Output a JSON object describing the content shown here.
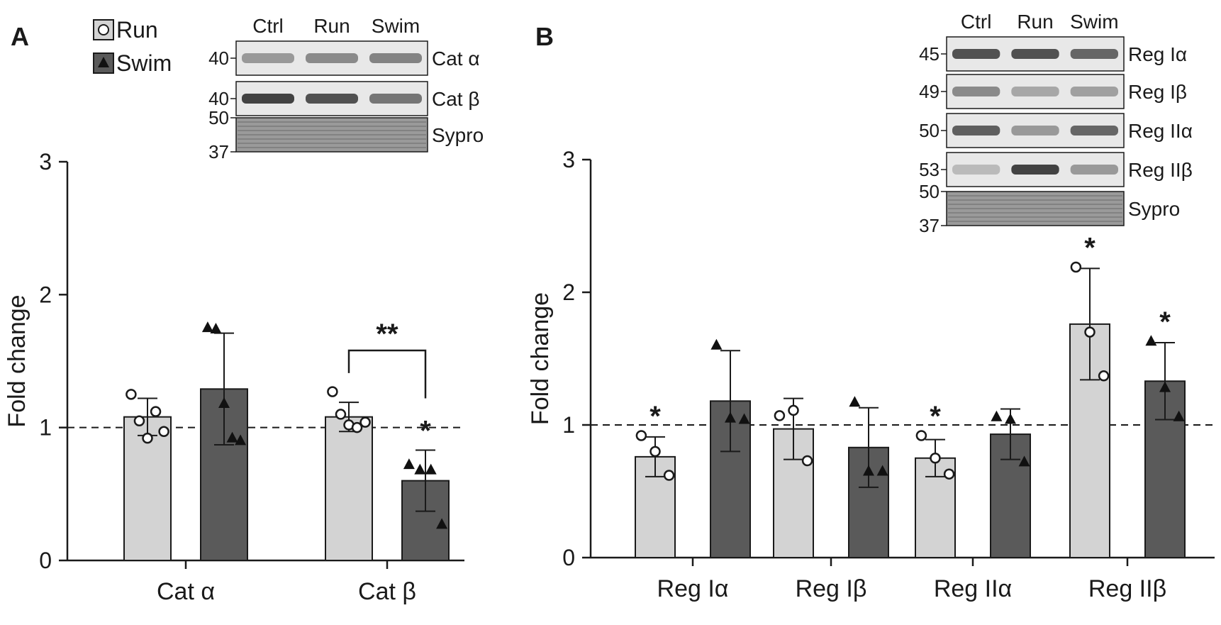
{
  "chart_data": [
    {
      "panel": "A",
      "type": "bar",
      "ylabel": "Fold change",
      "ylim": [
        0,
        3
      ],
      "yticks": [
        0,
        1,
        2,
        3
      ],
      "reference_line": 1,
      "legend": [
        {
          "name": "Run",
          "marker": "circle",
          "color": "#d3d3d3"
        },
        {
          "name": "Swim",
          "marker": "triangle",
          "color": "#5a5a5a"
        }
      ],
      "categories": [
        "Cat α",
        "Cat β"
      ],
      "series": [
        {
          "name": "Run",
          "values": [
            1.08,
            1.08
          ],
          "errors": [
            0.14,
            0.11
          ],
          "points": [
            [
              1.25,
              1.05,
              0.92,
              1.12,
              0.97
            ],
            [
              1.27,
              1.1,
              1.02,
              1.0,
              1.04
            ]
          ],
          "significance": [
            "",
            ""
          ]
        },
        {
          "name": "Swim",
          "values": [
            1.29,
            0.6
          ],
          "errors": [
            0.42,
            0.23
          ],
          "points": [
            [
              1.75,
              1.74,
              1.18,
              0.92,
              0.9
            ],
            [
              0.72,
              0.68,
              0.68,
              0.27
            ]
          ],
          "significance": [
            "",
            "*"
          ]
        }
      ],
      "brackets": [
        {
          "category": "Cat β",
          "label": "**"
        }
      ],
      "blot": {
        "lanes": [
          "Ctrl",
          "Run",
          "Swim"
        ],
        "rows": [
          {
            "label": "Cat α",
            "marker": "40"
          },
          {
            "label": "Cat β",
            "marker": "40"
          },
          {
            "label": "Sypro",
            "marker_top": "50",
            "marker_bottom": "37"
          }
        ]
      }
    },
    {
      "panel": "B",
      "type": "bar",
      "ylabel": "Fold change",
      "ylim": [
        0,
        3
      ],
      "yticks": [
        0,
        1,
        2,
        3
      ],
      "reference_line": 1,
      "categories": [
        "Reg Iα",
        "Reg Iβ",
        "Reg IIα",
        "Reg IIβ"
      ],
      "series": [
        {
          "name": "Run",
          "values": [
            0.76,
            0.97,
            0.75,
            1.76
          ],
          "errors": [
            0.15,
            0.23,
            0.14,
            0.42
          ],
          "points": [
            [
              0.92,
              0.8,
              0.62
            ],
            [
              1.07,
              1.11,
              0.73
            ],
            [
              0.92,
              0.75,
              0.63
            ],
            [
              2.19,
              1.7,
              1.37
            ]
          ],
          "significance": [
            "*",
            "",
            "*",
            "*"
          ]
        },
        {
          "name": "Swim",
          "values": [
            1.18,
            0.83,
            0.93,
            1.33
          ],
          "errors": [
            0.38,
            0.3,
            0.19,
            0.29
          ],
          "points": [
            [
              1.6,
              1.05,
              1.04
            ],
            [
              1.17,
              0.65,
              0.65
            ],
            [
              1.06,
              1.04,
              0.72
            ],
            [
              1.63,
              1.28,
              1.06
            ]
          ],
          "significance": [
            "",
            "",
            "",
            "*"
          ]
        }
      ],
      "blot": {
        "lanes": [
          "Ctrl",
          "Run",
          "Swim"
        ],
        "rows": [
          {
            "label": "Reg Iα",
            "marker": "45"
          },
          {
            "label": "Reg Iβ",
            "marker": "49"
          },
          {
            "label": "Reg IIα",
            "marker": "50"
          },
          {
            "label": "Reg IIβ",
            "marker": "53"
          },
          {
            "label": "Sypro",
            "marker_top": "50",
            "marker_bottom": "37"
          }
        ]
      }
    }
  ]
}
